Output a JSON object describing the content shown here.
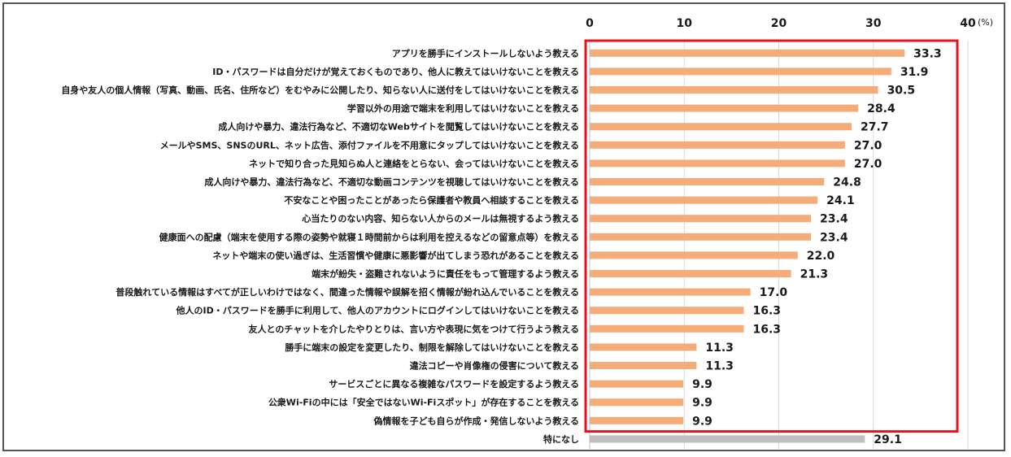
{
  "chart_data": {
    "type": "bar",
    "orientation": "horizontal",
    "unit": "(%)",
    "xlim": [
      0,
      40
    ],
    "ticks": [
      0,
      10,
      20,
      30,
      40
    ],
    "grid": true,
    "highlight_box_color": "#e8121c",
    "categories": [
      "アプリを勝手にインストールしないよう教える",
      "ID・パスワードは自分だけが覚えておくものであり、他人に教えてはいけないことを教える",
      "自身や友人の個人情報（写真、動画、氏名、住所など）をむやみに公開したり、知らない人に送付をしてはいけないことを教える",
      "学習以外の用途で端末を利用してはいけないことを教える",
      "成人向けや暴力、違法行為など、不適切なWebサイトを閲覧してはいけないことを教える",
      "メールやSMS、SNSのURL、ネット広告、添付ファイルを不用意にタップしてはいけないことを教える",
      "ネットで知り合った見知らぬ人と連絡をとらない、会ってはいけないことを教える",
      "成人向けや暴力、違法行為など、不適切な動画コンテンツを視聴してはいけないことを教える",
      "不安なことや困ったことがあったら保護者や教員へ相談することを教える",
      "心当たりのない内容、知らない人からのメールは無視するよう教える",
      "健康面への配慮（端末を使用する際の姿勢や就寝１時間前からは利用を控えるなどの留意点等）を教える",
      "ネットや端末の使い過ぎは、生活習慣や健康に悪影響が出てしまう恐れがあることを教える",
      "端末が紛失・盗難されないように責任をもって管理するよう教える",
      "普段触れている情報はすべてが正しいわけではなく、間違った情報や誤解を招く情報が紛れ込んでいることを教える",
      "他人のID・パスワードを勝手に利用して、他人のアカウントにログインしてはいけないことを教える",
      "友人とのチャットを介したやりとりは、言い方や表現に気をつけて行うよう教える",
      "勝手に端末の設定を変更したり、制限を解除してはいけないことを教える",
      "違法コピーや肖像権の侵害について教える",
      "サービスごとに異なる複雑なパスワードを設定するよう教える",
      "公衆Wi-Fiの中には「安全ではないWi-Fiスポット」が存在することを教える",
      "偽情報を子ども自らが作成・発信しないよう教える",
      "特になし"
    ],
    "values": [
      33.3,
      31.9,
      30.5,
      28.4,
      27.7,
      27.0,
      27.0,
      24.8,
      24.1,
      23.4,
      23.4,
      22.0,
      21.3,
      17.0,
      16.3,
      16.3,
      11.3,
      11.3,
      9.9,
      9.9,
      9.9,
      29.1
    ],
    "value_labels": [
      "33.3",
      "31.9",
      "30.5",
      "28.4",
      "27.7",
      "27.0",
      "27.0",
      "24.8",
      "24.1",
      "23.4",
      "23.4",
      "22.0",
      "21.3",
      "17.0",
      "16.3",
      "16.3",
      "11.3",
      "11.3",
      "9.9",
      "9.9",
      "9.9",
      "29.1"
    ],
    "bar_colors": [
      "#f5ac78",
      "#f5ac78",
      "#f5ac78",
      "#f5ac78",
      "#f5ac78",
      "#f5ac78",
      "#f5ac78",
      "#f5ac78",
      "#f5ac78",
      "#f5ac78",
      "#f5ac78",
      "#f5ac78",
      "#f5ac78",
      "#f5ac78",
      "#f5ac78",
      "#f5ac78",
      "#f5ac78",
      "#f5ac78",
      "#f5ac78",
      "#f5ac78",
      "#f5ac78",
      "#bfbfbf"
    ]
  }
}
